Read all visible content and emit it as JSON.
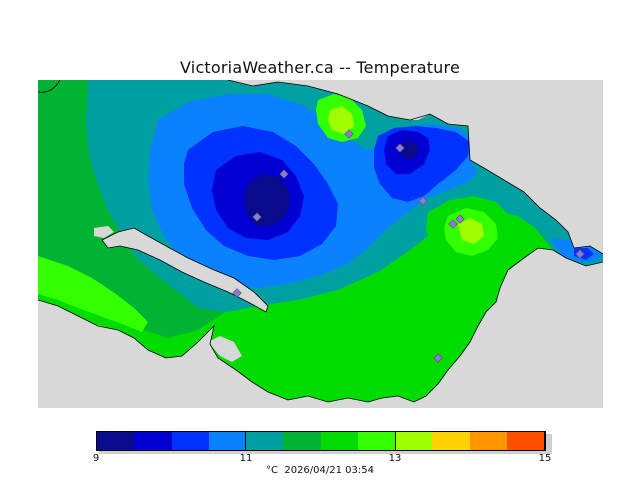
{
  "title": "VictoriaWeather.ca -- Temperature",
  "legend": {
    "units": "°C",
    "timestamp": "2026/04/21 03:54",
    "ticks": [
      "9",
      "11",
      "13",
      "15"
    ],
    "colors": [
      "#0a0a8c",
      "#0000d2",
      "#0032ff",
      "#0a82ff",
      "#00a0a0",
      "#00b432",
      "#00dc00",
      "#32ff00",
      "#a0ff00",
      "#ffd200",
      "#ff9600",
      "#ff5000",
      "#ff0000"
    ]
  },
  "map": {
    "region": "Victoria / Saanich Peninsula",
    "variable": "Temperature",
    "land_colors": {
      "sea": "#d8d8d8",
      "lt_9_5": "#0a0a8c",
      "9_5_10": "#0000d2",
      "10_10_5": "#0032ff",
      "10_5_11": "#0a82ff",
      "11_11_5": "#00a0a0",
      "11_5_12": "#00b432",
      "12_12_5": "#00dc00",
      "12_5_13": "#32ff00",
      "13_13_5": "#a0ff00",
      "gt_13_5": "#ffd200"
    },
    "station_marker_color": "#8a7bd8",
    "station_count": 11
  }
}
